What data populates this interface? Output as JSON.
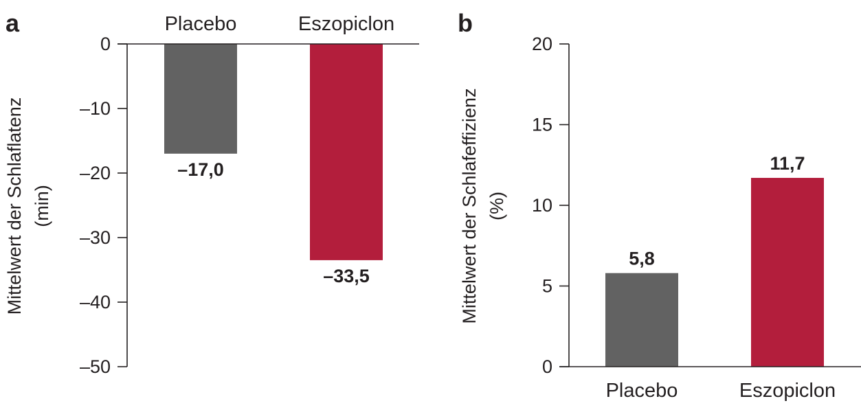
{
  "chart_data": [
    {
      "panel": "a",
      "type": "bar",
      "categories": [
        "Placebo",
        "Eszopiclon"
      ],
      "values": [
        -17.0,
        -33.5
      ],
      "value_labels": [
        "–17,0",
        "–33,5"
      ],
      "colors": [
        "#626262",
        "#b31e3c"
      ],
      "title": "",
      "xlabel": "",
      "ylabel": [
        "Mittelwert der Schlaflatenz",
        "(min)"
      ],
      "ylim": [
        -50,
        0
      ],
      "yticks": [
        0,
        -10,
        -20,
        -30,
        -40,
        -50
      ],
      "ytick_labels": [
        "0",
        "–10",
        "–20",
        "–30",
        "–40",
        "–50"
      ],
      "category_axis_position": "top",
      "grid": false,
      "legend": "none"
    },
    {
      "panel": "b",
      "type": "bar",
      "categories": [
        "Placebo",
        "Eszopiclon"
      ],
      "values": [
        5.8,
        11.7
      ],
      "value_labels": [
        "5,8",
        "11,7"
      ],
      "colors": [
        "#626262",
        "#b31e3c"
      ],
      "title": "",
      "xlabel": "",
      "ylabel": [
        "Mittelwert der Schlafeffizienz",
        "(%)"
      ],
      "ylim": [
        0,
        20
      ],
      "yticks": [
        0,
        5,
        10,
        15,
        20
      ],
      "ytick_labels": [
        "0",
        "5",
        "10",
        "15",
        "20"
      ],
      "category_axis_position": "bottom",
      "grid": false,
      "legend": "none"
    }
  ]
}
